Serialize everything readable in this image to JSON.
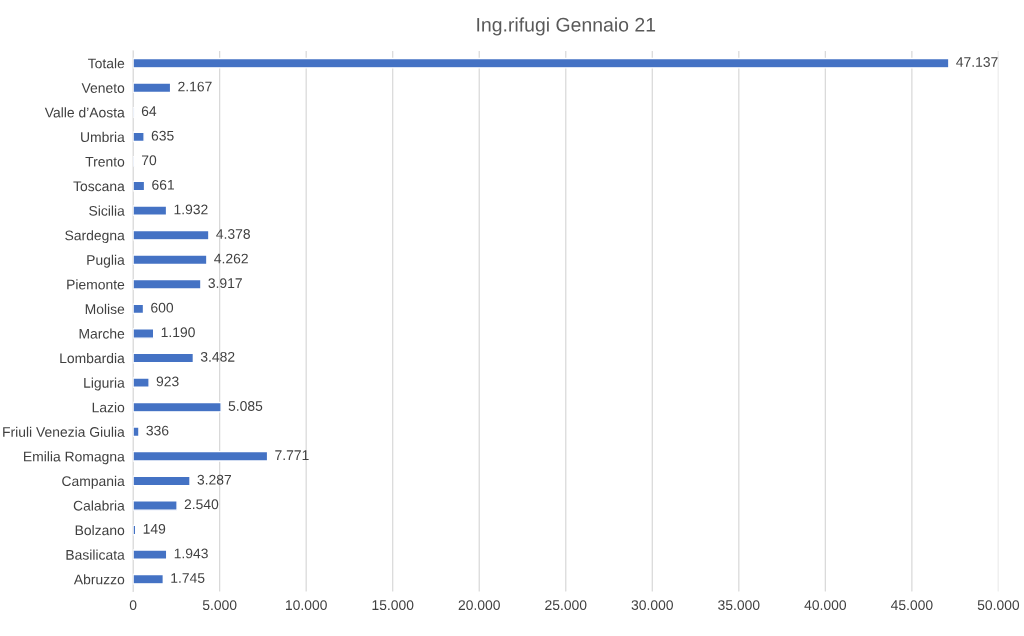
{
  "chart_data": {
    "type": "bar",
    "orientation": "horizontal",
    "title": "Ing.rifugi Gennaio 21",
    "categories": [
      "Totale",
      "Veneto",
      "Valle d’Aosta",
      "Umbria",
      "Trento",
      "Toscana",
      "Sicilia",
      "Sardegna",
      "Puglia",
      "Piemonte",
      "Molise",
      "Marche",
      "Lombardia",
      "Liguria",
      "Lazio",
      "Friuli Venezia Giulia",
      "Emilia Romagna",
      "Campania",
      "Calabria",
      "Bolzano",
      "Basilicata",
      "Abruzzo"
    ],
    "values": [
      47137,
      2167,
      64,
      635,
      70,
      661,
      1932,
      4378,
      4262,
      3917,
      600,
      1190,
      3482,
      923,
      5085,
      336,
      7771,
      3287,
      2540,
      149,
      1943,
      1745
    ],
    "value_labels": [
      "47.137",
      "2.167",
      "64",
      "635",
      "70",
      "661",
      "1.932",
      "4.378",
      "4.262",
      "3.917",
      "600",
      "1.190",
      "3.482",
      "923",
      "5.085",
      "336",
      "7.771",
      "3.287",
      "2.540",
      "149",
      "1.943",
      "1.745"
    ],
    "color": "#4472c4",
    "xlim": [
      0,
      50000
    ],
    "xticks": [
      0,
      {
        "value": 5000,
        "label": "5.000"
      },
      {
        "value": 10000,
        "label": "10.000"
      },
      {
        "value": 15000,
        "label": "15.000"
      },
      {
        "value": 20000,
        "label": "20.000"
      },
      {
        "value": 25000,
        "label": "25.000"
      },
      {
        "value": 30000,
        "label": "30.000"
      },
      {
        "value": 35000,
        "label": "35.000"
      },
      {
        "value": 40000,
        "label": "40.000"
      },
      {
        "value": 45000,
        "label": "45.000"
      },
      {
        "value": 50000,
        "label": "50.000"
      }
    ],
    "grid": "x"
  }
}
